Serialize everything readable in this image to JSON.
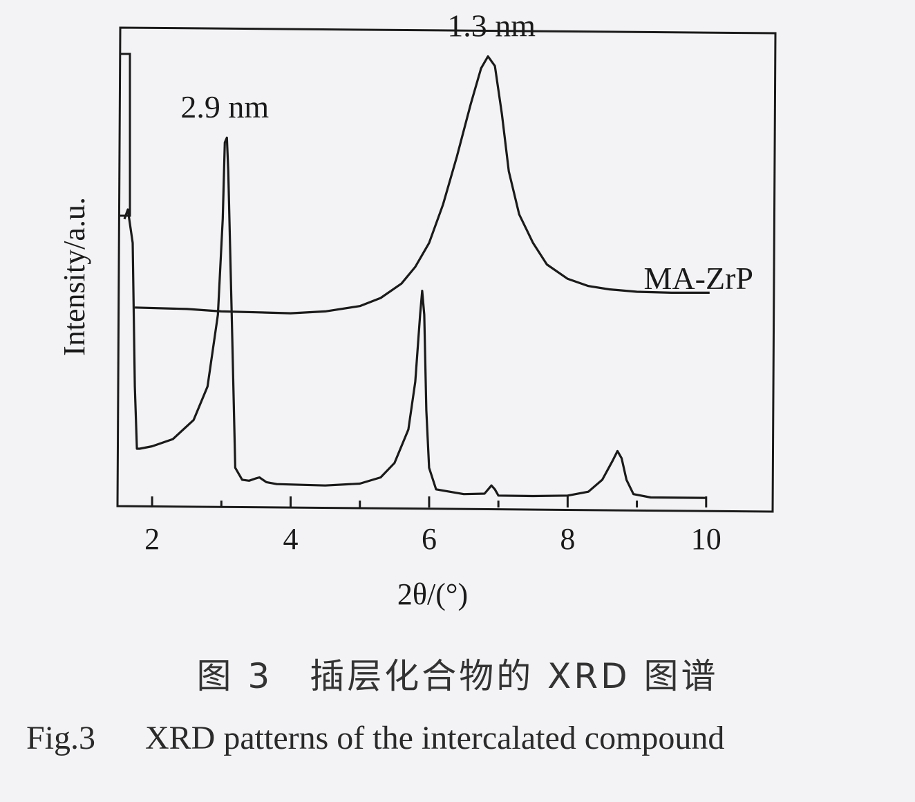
{
  "chart_data": {
    "type": "line",
    "xlabel": "2θ/(°)",
    "ylabel": "Intensity/a.u.",
    "xlim": [
      1.5,
      11.0
    ],
    "ylim": [
      0,
      100
    ],
    "x_ticks": [
      2,
      4,
      6,
      8,
      10
    ],
    "x_minor_ticks": [
      3,
      5,
      7,
      9
    ],
    "yticks_shown": false,
    "grid": false,
    "series": [
      {
        "name": "MA-ZrP",
        "color": "#1a1a1a",
        "points": [
          [
            1.75,
            41.5
          ],
          [
            2.5,
            41.2
          ],
          [
            3.0,
            40.7
          ],
          [
            3.5,
            40.5
          ],
          [
            4.0,
            40.3
          ],
          [
            4.5,
            40.7
          ],
          [
            5.0,
            41.8
          ],
          [
            5.3,
            43.5
          ],
          [
            5.6,
            46.5
          ],
          [
            5.8,
            50
          ],
          [
            6.0,
            55
          ],
          [
            6.2,
            63
          ],
          [
            6.4,
            73
          ],
          [
            6.6,
            84
          ],
          [
            6.75,
            91.5
          ],
          [
            6.85,
            94
          ],
          [
            6.95,
            92
          ],
          [
            7.05,
            82
          ],
          [
            7.15,
            70
          ],
          [
            7.3,
            61
          ],
          [
            7.5,
            55
          ],
          [
            7.7,
            50.5
          ],
          [
            8.0,
            47.5
          ],
          [
            8.3,
            46
          ],
          [
            8.6,
            45.3
          ],
          [
            9.0,
            44.8
          ],
          [
            9.5,
            44.6
          ],
          [
            10.05,
            44.6
          ]
        ]
      },
      {
        "color": "#1a1a1a",
        "points": [
          [
            1.6,
            60
          ],
          [
            1.65,
            62
          ],
          [
            1.72,
            55
          ],
          [
            1.75,
            25
          ],
          [
            1.78,
            12
          ],
          [
            1.82,
            12
          ],
          [
            2.0,
            12.5
          ],
          [
            2.3,
            14
          ],
          [
            2.6,
            18
          ],
          [
            2.8,
            25
          ],
          [
            2.95,
            40
          ],
          [
            3.02,
            60
          ],
          [
            3.05,
            76
          ],
          [
            3.08,
            77
          ],
          [
            3.1,
            70
          ],
          [
            3.15,
            40
          ],
          [
            3.2,
            8
          ],
          [
            3.3,
            5.5
          ],
          [
            3.4,
            5.3
          ],
          [
            3.5,
            5.8
          ],
          [
            3.55,
            6
          ],
          [
            3.65,
            5
          ],
          [
            3.8,
            4.6
          ],
          [
            4.5,
            4.3
          ],
          [
            5.0,
            4.7
          ],
          [
            5.3,
            6
          ],
          [
            5.5,
            9
          ],
          [
            5.7,
            16
          ],
          [
            5.8,
            26
          ],
          [
            5.87,
            40
          ],
          [
            5.9,
            45
          ],
          [
            5.93,
            40
          ],
          [
            5.96,
            20
          ],
          [
            6.0,
            8
          ],
          [
            6.1,
            3.5
          ],
          [
            6.5,
            2.5
          ],
          [
            6.8,
            2.6
          ],
          [
            6.9,
            4.3
          ],
          [
            6.95,
            3.5
          ],
          [
            7.0,
            2.2
          ],
          [
            7.5,
            2.1
          ],
          [
            8.0,
            2.2
          ],
          [
            8.3,
            3.0
          ],
          [
            8.5,
            5.5
          ],
          [
            8.65,
            9.5
          ],
          [
            8.72,
            11.5
          ],
          [
            8.78,
            10
          ],
          [
            8.85,
            5.5
          ],
          [
            8.95,
            2.5
          ],
          [
            9.2,
            1.8
          ],
          [
            10.0,
            1.7
          ]
        ]
      }
    ],
    "annotations": [
      {
        "text": "2.9 nm",
        "x": 3.05,
        "y": 78
      },
      {
        "text": "1.3 nm",
        "x": 6.9,
        "y": 95
      }
    ],
    "left_edge_feature": true
  },
  "caption": {
    "chinese": "图 3　插层化合物的 XRD 图谱",
    "english_no": "Fig.3",
    "english_text": "XRD patterns of the intercalated compound"
  }
}
